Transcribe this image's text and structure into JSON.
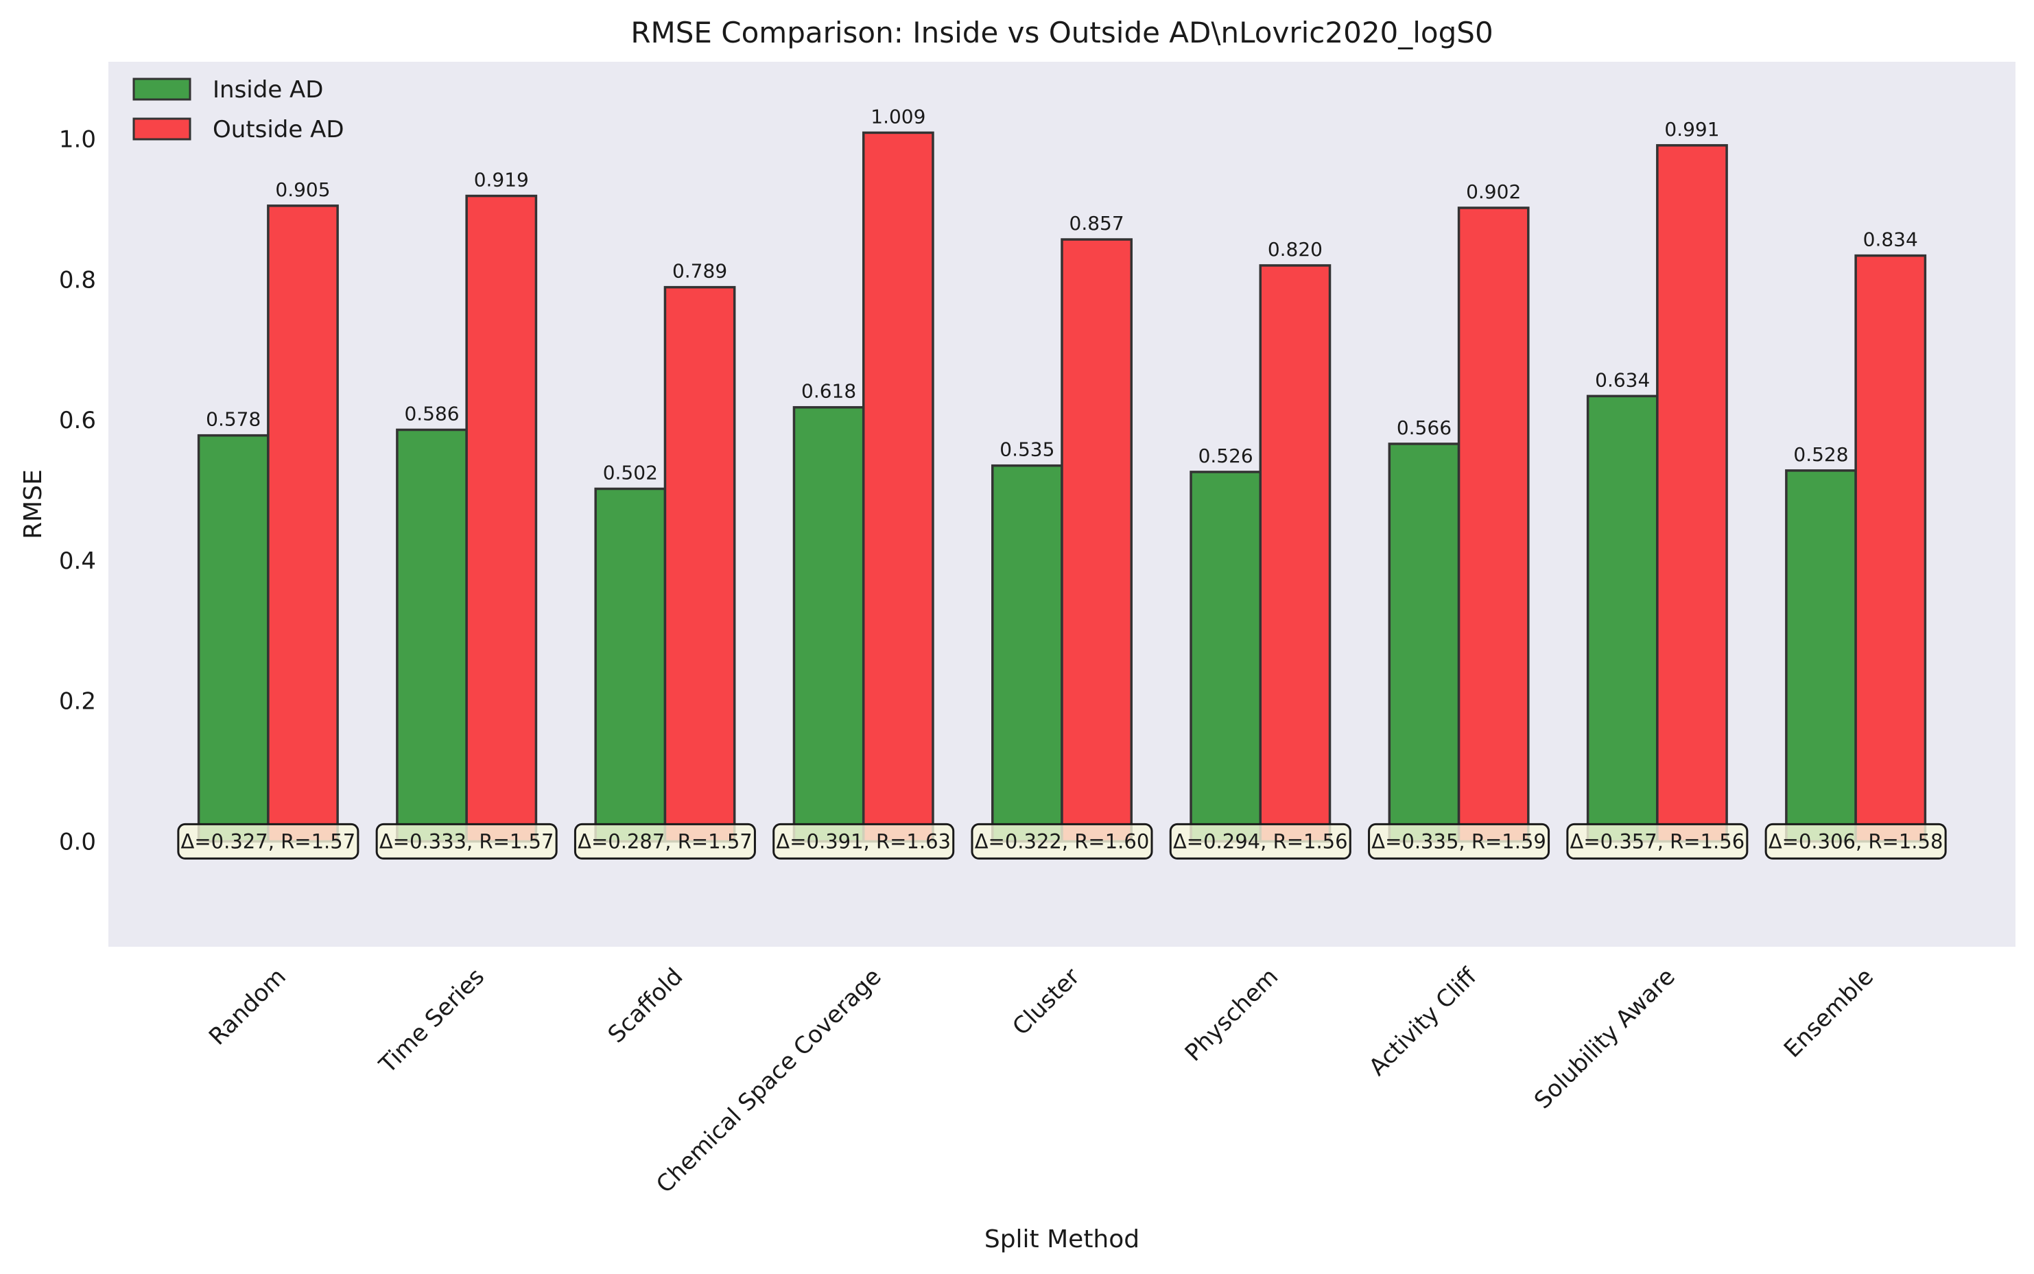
{
  "chart_data": {
    "type": "bar",
    "title": "RMSE Comparison: Inside vs Outside AD\\nLovric2020_logS0",
    "xlabel": "Split Method",
    "ylabel": "RMSE",
    "ylim": [
      -0.15,
      1.11
    ],
    "yticks": [
      0.0,
      0.2,
      0.4,
      0.6,
      0.8,
      1.0
    ],
    "ytick_labels": [
      "0.0",
      "0.2",
      "0.4",
      "0.6",
      "0.8",
      "1.0"
    ],
    "grid": false,
    "legend_position": "top-left",
    "categories": [
      "Random",
      "Time Series",
      "Scaffold",
      "Chemical Space Coverage",
      "Cluster",
      "Physchem",
      "Activity Cliff",
      "Solubility Aware",
      "Ensemble"
    ],
    "series": [
      {
        "name": "Inside AD",
        "color": "#439e48",
        "values": [
          0.578,
          0.586,
          0.502,
          0.618,
          0.535,
          0.526,
          0.566,
          0.634,
          0.528
        ],
        "labels": [
          "0.578",
          "0.586",
          "0.502",
          "0.618",
          "0.535",
          "0.526",
          "0.566",
          "0.634",
          "0.528"
        ]
      },
      {
        "name": "Outside AD",
        "color": "#f84448",
        "values": [
          0.905,
          0.919,
          0.789,
          1.009,
          0.857,
          0.82,
          0.902,
          0.991,
          0.834
        ],
        "labels": [
          "0.905",
          "0.919",
          "0.789",
          "1.009",
          "0.857",
          "0.820",
          "0.902",
          "0.991",
          "0.834"
        ]
      }
    ],
    "annotations": [
      "Δ=0.327, R=1.57",
      "Δ=0.333, R=1.57",
      "Δ=0.287, R=1.57",
      "Δ=0.391, R=1.63",
      "Δ=0.322, R=1.60",
      "Δ=0.294, R=1.56",
      "Δ=0.335, R=1.59",
      "Δ=0.357, R=1.56",
      "Δ=0.306, R=1.58"
    ],
    "colors": {
      "plot_background": "#eaeaf2",
      "bar_edge": "#333333",
      "annotation_fill": "#f7f7dc"
    }
  }
}
